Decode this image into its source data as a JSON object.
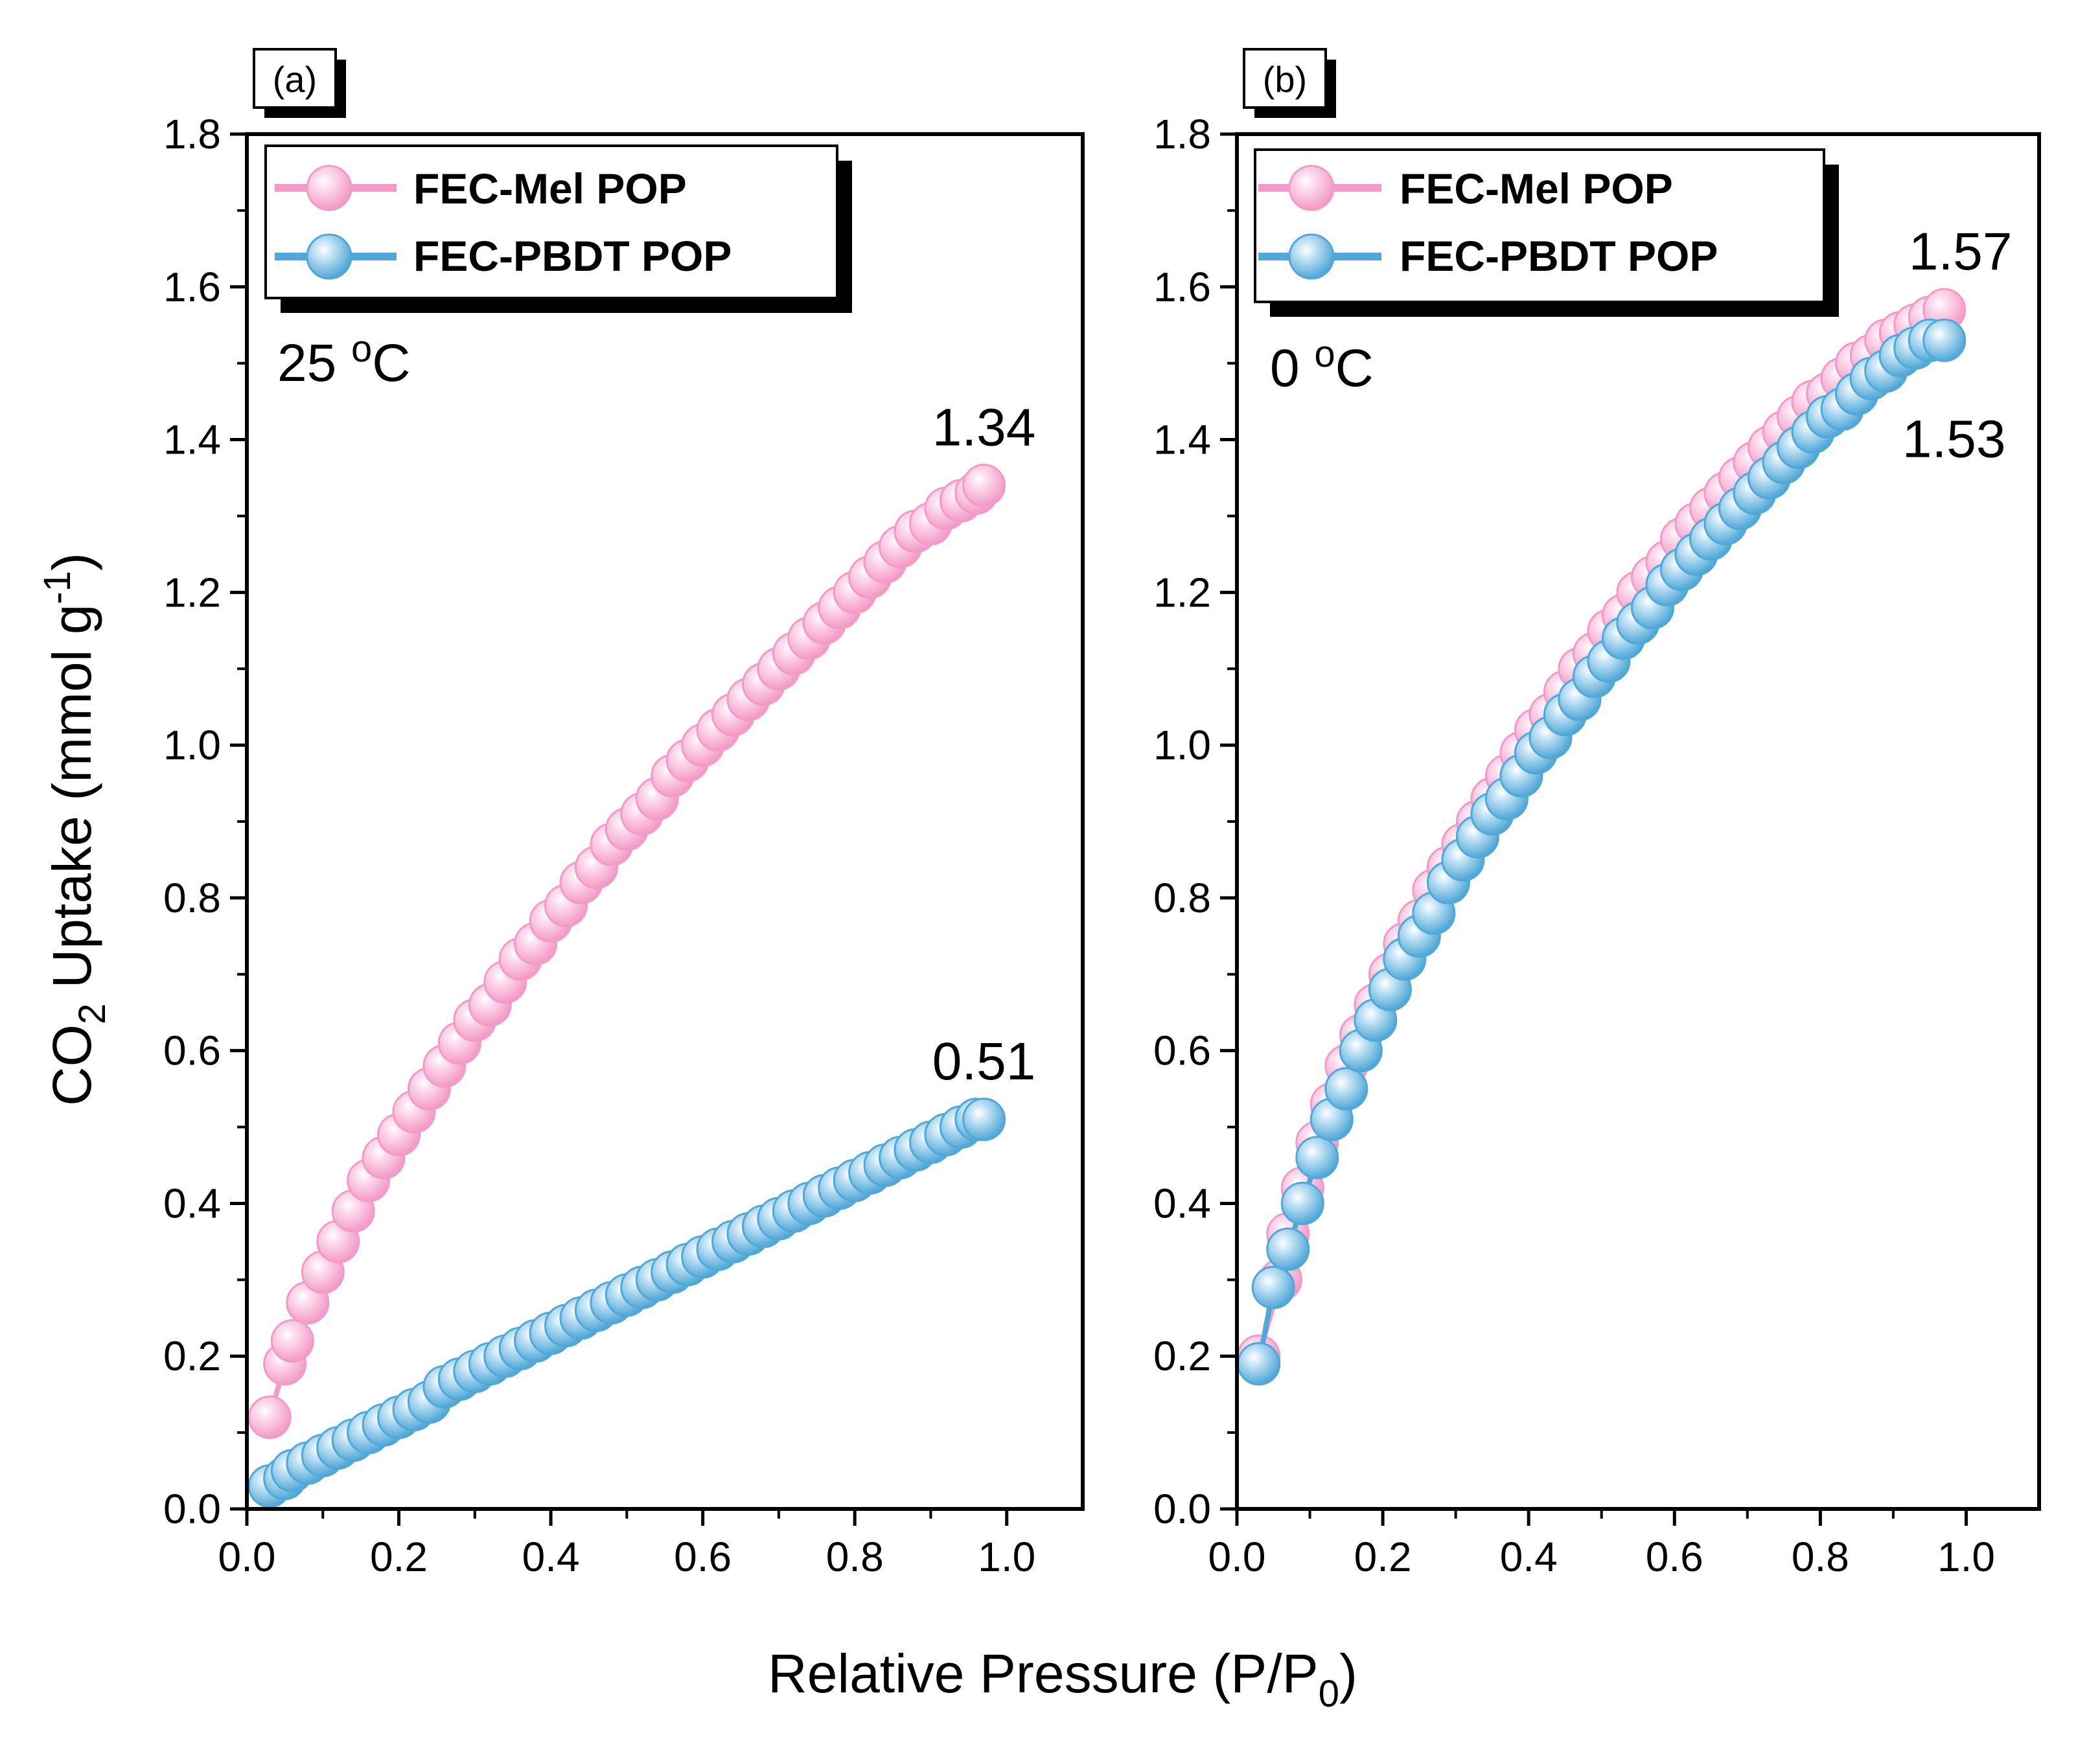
{
  "figure": {
    "ylabel": {
      "prefix": "CO",
      "sub": "2",
      "mid": " Uptake (mmol g",
      "sup": "-1",
      "suffix": ")"
    },
    "xlabel": {
      "prefix": "Relative Pressure (P/P",
      "sub": "0",
      "suffix": ")"
    }
  },
  "colors": {
    "mel": "#f49ac8",
    "pbdt": "#4fa8d8"
  },
  "chart_data": [
    {
      "type": "line",
      "panel_label": "(a)",
      "condition": {
        "number": "25 ",
        "sup": "o",
        "unit": "C"
      },
      "xlim": [
        0.0,
        1.1
      ],
      "ylim": [
        0.0,
        1.8
      ],
      "xticks": [
        "0.0",
        "0.2",
        "0.4",
        "0.6",
        "0.8",
        "1.0"
      ],
      "yticks": [
        "0.0",
        "0.2",
        "0.4",
        "0.6",
        "0.8",
        "1.0",
        "1.2",
        "1.4",
        "1.6",
        "1.8"
      ],
      "legend_position": "top-left",
      "series": [
        {
          "name": "FEC-Mel POP",
          "color": "#f49ac8",
          "x": [
            0.03,
            0.05,
            0.06,
            0.08,
            0.1,
            0.12,
            0.14,
            0.16,
            0.18,
            0.2,
            0.22,
            0.24,
            0.26,
            0.28,
            0.3,
            0.32,
            0.34,
            0.36,
            0.38,
            0.4,
            0.42,
            0.44,
            0.46,
            0.48,
            0.5,
            0.52,
            0.54,
            0.56,
            0.58,
            0.6,
            0.62,
            0.64,
            0.66,
            0.68,
            0.7,
            0.72,
            0.74,
            0.76,
            0.78,
            0.8,
            0.82,
            0.84,
            0.86,
            0.88,
            0.9,
            0.92,
            0.94,
            0.96,
            0.97
          ],
          "y": [
            0.12,
            0.19,
            0.22,
            0.27,
            0.31,
            0.35,
            0.39,
            0.43,
            0.46,
            0.49,
            0.52,
            0.55,
            0.58,
            0.61,
            0.64,
            0.66,
            0.69,
            0.72,
            0.74,
            0.77,
            0.79,
            0.82,
            0.84,
            0.87,
            0.89,
            0.91,
            0.93,
            0.96,
            0.98,
            1.0,
            1.02,
            1.04,
            1.06,
            1.08,
            1.1,
            1.12,
            1.14,
            1.16,
            1.18,
            1.2,
            1.22,
            1.24,
            1.26,
            1.28,
            1.29,
            1.31,
            1.32,
            1.33,
            1.34
          ],
          "end_label": "1.34"
        },
        {
          "name": "FEC-PBDT POP",
          "color": "#4fa8d8",
          "x": [
            0.03,
            0.05,
            0.06,
            0.08,
            0.1,
            0.12,
            0.14,
            0.16,
            0.18,
            0.2,
            0.22,
            0.24,
            0.26,
            0.28,
            0.3,
            0.32,
            0.34,
            0.36,
            0.38,
            0.4,
            0.42,
            0.44,
            0.46,
            0.48,
            0.5,
            0.52,
            0.54,
            0.56,
            0.58,
            0.6,
            0.62,
            0.64,
            0.66,
            0.68,
            0.7,
            0.72,
            0.74,
            0.76,
            0.78,
            0.8,
            0.82,
            0.84,
            0.86,
            0.88,
            0.9,
            0.92,
            0.94,
            0.96,
            0.97
          ],
          "y": [
            0.03,
            0.04,
            0.05,
            0.06,
            0.07,
            0.08,
            0.09,
            0.1,
            0.11,
            0.12,
            0.13,
            0.14,
            0.16,
            0.17,
            0.18,
            0.19,
            0.2,
            0.21,
            0.22,
            0.23,
            0.24,
            0.25,
            0.26,
            0.27,
            0.28,
            0.29,
            0.3,
            0.31,
            0.32,
            0.33,
            0.34,
            0.35,
            0.36,
            0.37,
            0.38,
            0.39,
            0.4,
            0.41,
            0.42,
            0.43,
            0.44,
            0.45,
            0.46,
            0.47,
            0.48,
            0.49,
            0.5,
            0.51,
            0.51
          ],
          "end_label": "0.51"
        }
      ]
    },
    {
      "type": "line",
      "panel_label": "(b)",
      "condition": {
        "number": "0 ",
        "sup": "o",
        "unit": "C"
      },
      "xlim": [
        0.0,
        1.1
      ],
      "ylim": [
        0.0,
        1.8
      ],
      "xticks": [
        "0.0",
        "0.2",
        "0.4",
        "0.6",
        "0.8",
        "1.0"
      ],
      "yticks": [
        "0.0",
        "0.2",
        "0.4",
        "0.6",
        "0.8",
        "1.0",
        "1.2",
        "1.4",
        "1.6",
        "1.8"
      ],
      "legend_position": "top-left",
      "series": [
        {
          "name": "FEC-Mel POP",
          "color": "#f49ac8",
          "x": [
            0.03,
            0.06,
            0.07,
            0.09,
            0.11,
            0.13,
            0.15,
            0.17,
            0.19,
            0.21,
            0.23,
            0.25,
            0.27,
            0.29,
            0.31,
            0.33,
            0.35,
            0.37,
            0.39,
            0.41,
            0.43,
            0.45,
            0.47,
            0.49,
            0.51,
            0.53,
            0.55,
            0.57,
            0.59,
            0.61,
            0.63,
            0.65,
            0.67,
            0.69,
            0.71,
            0.73,
            0.75,
            0.77,
            0.79,
            0.81,
            0.83,
            0.85,
            0.87,
            0.89,
            0.91,
            0.93,
            0.95,
            0.97
          ],
          "y": [
            0.2,
            0.3,
            0.36,
            0.42,
            0.48,
            0.53,
            0.58,
            0.62,
            0.66,
            0.7,
            0.74,
            0.77,
            0.81,
            0.84,
            0.87,
            0.9,
            0.93,
            0.96,
            0.99,
            1.02,
            1.04,
            1.07,
            1.1,
            1.12,
            1.15,
            1.17,
            1.2,
            1.22,
            1.24,
            1.27,
            1.29,
            1.31,
            1.33,
            1.35,
            1.37,
            1.39,
            1.41,
            1.43,
            1.45,
            1.46,
            1.48,
            1.5,
            1.51,
            1.53,
            1.54,
            1.55,
            1.56,
            1.57
          ],
          "end_label": "1.57"
        },
        {
          "name": "FEC-PBDT POP",
          "color": "#4fa8d8",
          "x": [
            0.03,
            0.05,
            0.07,
            0.09,
            0.11,
            0.13,
            0.15,
            0.17,
            0.19,
            0.21,
            0.23,
            0.25,
            0.27,
            0.29,
            0.31,
            0.33,
            0.35,
            0.37,
            0.39,
            0.41,
            0.43,
            0.45,
            0.47,
            0.49,
            0.51,
            0.53,
            0.55,
            0.57,
            0.59,
            0.61,
            0.63,
            0.65,
            0.67,
            0.69,
            0.71,
            0.73,
            0.75,
            0.77,
            0.79,
            0.81,
            0.83,
            0.85,
            0.87,
            0.89,
            0.91,
            0.93,
            0.95,
            0.97
          ],
          "y": [
            0.19,
            0.29,
            0.34,
            0.4,
            0.46,
            0.51,
            0.55,
            0.6,
            0.64,
            0.68,
            0.72,
            0.75,
            0.78,
            0.82,
            0.85,
            0.88,
            0.91,
            0.93,
            0.96,
            0.99,
            1.01,
            1.04,
            1.06,
            1.09,
            1.11,
            1.14,
            1.16,
            1.18,
            1.21,
            1.23,
            1.25,
            1.27,
            1.29,
            1.31,
            1.33,
            1.35,
            1.37,
            1.39,
            1.41,
            1.43,
            1.44,
            1.46,
            1.48,
            1.49,
            1.51,
            1.52,
            1.53,
            1.53
          ],
          "end_label": "1.53"
        }
      ]
    }
  ]
}
